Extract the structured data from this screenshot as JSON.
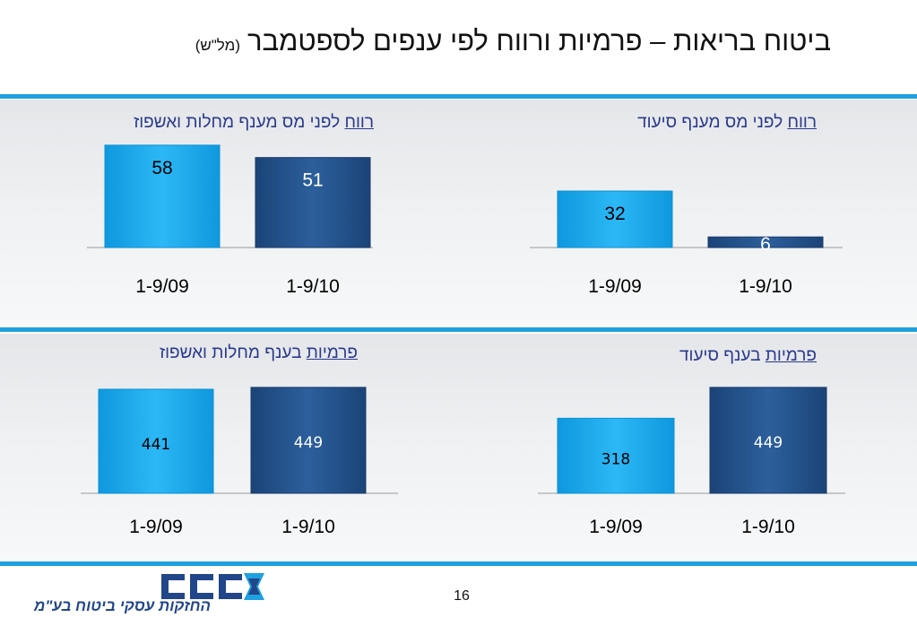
{
  "title": {
    "main": "ביטוח בריאות – פרמיות ורווח לפי ענפים לספטמבר",
    "unit": "(מל\"ש)"
  },
  "colors": {
    "light_bar": "#1aa8ee",
    "dark_bar": "#23548e",
    "rule": "#1fa0e0",
    "title_text": "#2a3a8c"
  },
  "chart_data": [
    {
      "id": "profit-illness",
      "type": "bar",
      "title_key": "רווח",
      "title_rest": " לפני מס מענף מחלות ואשפוז",
      "categories": [
        "1-9/09",
        "1-9/10"
      ],
      "values": [
        58,
        51
      ],
      "ylim": [
        0,
        62
      ]
    },
    {
      "id": "profit-nursing",
      "type": "bar",
      "title_key": "רווח",
      "title_rest": " לפני מס מענף סיעוד",
      "categories": [
        "1-9/09",
        "1-9/10"
      ],
      "values": [
        32,
        6
      ],
      "ylim": [
        0,
        62
      ]
    },
    {
      "id": "premiums-illness",
      "type": "bar",
      "title_key": "פרמיות",
      "title_rest": " בענף מחלות ואשפוז",
      "categories": [
        "1-9/09",
        "1-9/10"
      ],
      "values": [
        441,
        449
      ],
      "ylim": [
        0,
        460
      ]
    },
    {
      "id": "premiums-nursing",
      "type": "bar",
      "title_key": "פרמיות",
      "title_rest": " בענף סיעוד",
      "categories": [
        "1-9/09",
        "1-9/10"
      ],
      "values": [
        318,
        449
      ],
      "ylim": [
        0,
        460
      ]
    }
  ],
  "page_number": "16",
  "logo": {
    "name": "כלל",
    "subtitle": "החזקות עסקי ביטוח בע\"מ"
  }
}
